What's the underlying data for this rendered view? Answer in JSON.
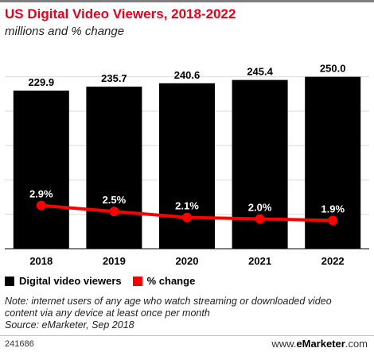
{
  "title": "US Digital Video Viewers, 2018-2022",
  "subtitle": "millions and % change",
  "legend": {
    "bars": "Digital video viewers",
    "line": "% change"
  },
  "note_lines": [
    "Note: internet users of any age who watch streaming or downloaded video",
    "content via any device at least once per month",
    "Source: eMarketer, Sep 2018"
  ],
  "footer": {
    "id": "241686",
    "brand_prefix": "www.",
    "brand_name": "eMarketer",
    "brand_suffix": ".com"
  },
  "colors": {
    "bar": "#000000",
    "line": "#ff0000",
    "title": "#e8001c"
  },
  "chart_data": {
    "type": "bar",
    "categories": [
      "2018",
      "2019",
      "2020",
      "2021",
      "2022"
    ],
    "series": [
      {
        "name": "Digital video viewers",
        "type": "bar",
        "values": [
          229.9,
          235.7,
          240.6,
          245.4,
          250.0
        ],
        "labels": [
          "229.9",
          "235.7",
          "240.6",
          "245.4",
          "250.0"
        ]
      },
      {
        "name": "% change",
        "type": "line",
        "values": [
          2.9,
          2.5,
          2.1,
          2.0,
          1.9
        ],
        "labels": [
          "2.9%",
          "2.5%",
          "2.1%",
          "2.0%",
          "1.9%"
        ]
      }
    ],
    "ylim": [
      0,
      260
    ],
    "y2lim": [
      0,
      12
    ],
    "grid": true,
    "legend": "bottom-left"
  }
}
